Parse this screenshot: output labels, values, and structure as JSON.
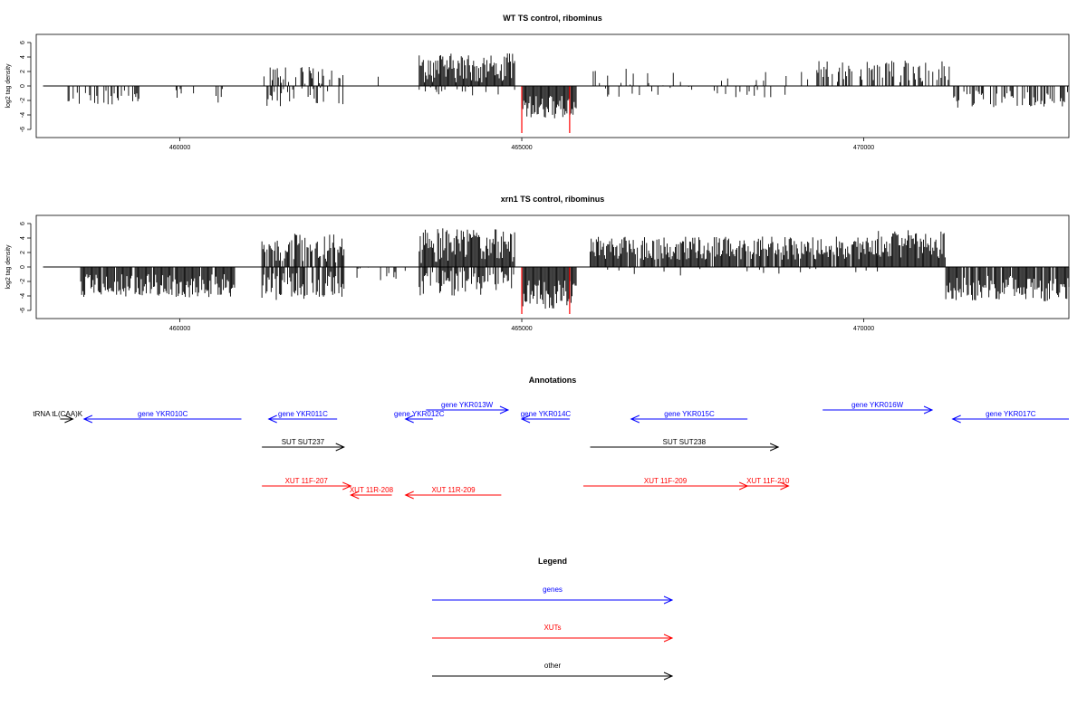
{
  "colors": {
    "genes": "#0000ff",
    "xuts": "#ff0000",
    "other": "#000000",
    "bars": "#000000",
    "highlight": "#ff0000"
  },
  "chart_data": [
    {
      "type": "bar",
      "title": "WT TS control, ribominus",
      "ylabel": "log2 tag density",
      "xlim": [
        457900,
        473000
      ],
      "ylim": [
        -6.5,
        6.5
      ],
      "x_ticks": [
        460000,
        465000,
        470000
      ],
      "x_tick_labels": [
        "460000",
        "465000",
        "470000"
      ],
      "y_ticks": [
        -6,
        -4,
        -2,
        0,
        2,
        4,
        6
      ],
      "y_tick_labels": [
        "-6",
        "-4",
        "-2",
        "0",
        "2",
        "4",
        "6"
      ],
      "region": [
        458000,
        473000
      ],
      "bar_segments": [
        {
          "start": 458200,
          "end": 458250,
          "mean": -1.6,
          "amp": 0.6,
          "density": 0.02
        },
        {
          "start": 458350,
          "end": 459400,
          "mean": -1.6,
          "amp": 1.0,
          "density": 0.4
        },
        {
          "start": 459600,
          "end": 461000,
          "mean": -1.3,
          "amp": 1.0,
          "density": 0.15
        },
        {
          "start": 461200,
          "end": 462400,
          "mean": 1.5,
          "amp": 1.2,
          "density": 0.3
        },
        {
          "start": 461200,
          "end": 462400,
          "mean": -1.5,
          "amp": 1.3,
          "density": 0.35
        },
        {
          "start": 462600,
          "end": 463400,
          "mean": 0.6,
          "amp": 1.2,
          "density": 0.06
        },
        {
          "start": 463500,
          "end": 464900,
          "mean": 2.5,
          "amp": 2.0,
          "density": 1.0
        },
        {
          "start": 463500,
          "end": 464900,
          "mean": -0.7,
          "amp": 0.6,
          "density": 0.15
        },
        {
          "start": 465000,
          "end": 465800,
          "mean": -2.9,
          "amp": 1.6,
          "density": 1.0
        },
        {
          "start": 466000,
          "end": 469200,
          "mean": 1.2,
          "amp": 1.2,
          "density": 0.1
        },
        {
          "start": 466000,
          "end": 469200,
          "mean": -0.8,
          "amp": 0.8,
          "density": 0.08
        },
        {
          "start": 469300,
          "end": 471300,
          "mean": 2.0,
          "amp": 1.5,
          "density": 0.45
        },
        {
          "start": 471300,
          "end": 473000,
          "mean": -1.8,
          "amp": 1.2,
          "density": 0.5
        }
      ],
      "highlight_bars": [
        {
          "x": 465000,
          "value": -6.5
        },
        {
          "x": 465700,
          "value": -6.5
        }
      ]
    },
    {
      "type": "bar",
      "title": "xrn1 TS control, ribominus",
      "ylabel": "log2 tag density",
      "xlim": [
        457900,
        473000
      ],
      "ylim": [
        -6.5,
        6.5
      ],
      "x_ticks": [
        460000,
        465000,
        470000
      ],
      "x_tick_labels": [
        "460000",
        "465000",
        "470000"
      ],
      "y_ticks": [
        -6,
        -4,
        -2,
        0,
        2,
        4,
        6
      ],
      "y_tick_labels": [
        "-6",
        "-4",
        "-2",
        "0",
        "2",
        "4",
        "6"
      ],
      "region": [
        458000,
        473000
      ],
      "bar_segments": [
        {
          "start": 458550,
          "end": 460800,
          "mean": -2.6,
          "amp": 1.6,
          "density": 0.9
        },
        {
          "start": 461200,
          "end": 462400,
          "mean": 2.6,
          "amp": 2.0,
          "density": 0.7
        },
        {
          "start": 461200,
          "end": 462400,
          "mean": -2.6,
          "amp": 2.0,
          "density": 0.7
        },
        {
          "start": 462500,
          "end": 463400,
          "mean": -1.0,
          "amp": 1.2,
          "density": 0.2
        },
        {
          "start": 463500,
          "end": 464900,
          "mean": 3.0,
          "amp": 2.5,
          "density": 1.0
        },
        {
          "start": 463500,
          "end": 464900,
          "mean": -2.2,
          "amp": 1.8,
          "density": 0.7
        },
        {
          "start": 465000,
          "end": 465800,
          "mean": -3.8,
          "amp": 2.0,
          "density": 1.0
        },
        {
          "start": 466000,
          "end": 470200,
          "mean": 2.6,
          "amp": 1.6,
          "density": 0.9
        },
        {
          "start": 466000,
          "end": 470200,
          "mean": -0.6,
          "amp": 0.6,
          "density": 0.06
        },
        {
          "start": 470200,
          "end": 471200,
          "mean": 3.2,
          "amp": 2.0,
          "density": 1.0
        },
        {
          "start": 471200,
          "end": 473000,
          "mean": -3.0,
          "amp": 1.8,
          "density": 0.9
        }
      ],
      "highlight_bars": [
        {
          "x": 465000,
          "value": -6.5
        },
        {
          "x": 465700,
          "value": -6.5
        }
      ]
    }
  ],
  "annotations": {
    "title": "Annotations",
    "features": [
      {
        "label": "tRNA tL(CAA)K",
        "start": 458250,
        "end": 458280,
        "strand": "+",
        "kind": "other",
        "row": 1
      },
      {
        "label": "gene YKR010C",
        "start": 458600,
        "end": 460900,
        "strand": "-",
        "kind": "genes",
        "row": 1
      },
      {
        "label": "gene YKR011C",
        "start": 461300,
        "end": 462300,
        "strand": "-",
        "kind": "genes",
        "row": 1
      },
      {
        "label": "gene YKR012C",
        "start": 463300,
        "end": 463700,
        "strand": "-",
        "kind": "genes",
        "row": 1
      },
      {
        "label": "gene YKR013W",
        "start": 463600,
        "end": 464800,
        "strand": "+",
        "kind": "genes",
        "row": 0
      },
      {
        "label": "gene YKR014C",
        "start": 465000,
        "end": 465700,
        "strand": "-",
        "kind": "genes",
        "row": 1
      },
      {
        "label": "gene YKR015C",
        "start": 466600,
        "end": 468300,
        "strand": "-",
        "kind": "genes",
        "row": 1
      },
      {
        "label": "gene YKR016W",
        "start": 469400,
        "end": 471000,
        "strand": "+",
        "kind": "genes",
        "row": 0
      },
      {
        "label": "gene YKR017C",
        "start": 471300,
        "end": 473000,
        "strand": "-",
        "kind": "genes",
        "row": 1
      },
      {
        "label": "SUT SUT237",
        "start": 461200,
        "end": 462400,
        "strand": "+",
        "kind": "other",
        "row": 2
      },
      {
        "label": "SUT SUT238",
        "start": 466000,
        "end": 468750,
        "strand": "+",
        "kind": "other",
        "row": 2
      },
      {
        "label": "XUT 11F-207",
        "start": 461200,
        "end": 462500,
        "strand": "+",
        "kind": "xuts",
        "row": 3
      },
      {
        "label": "XUT 11R-208",
        "start": 462500,
        "end": 463100,
        "strand": "-",
        "kind": "xuts",
        "row": 4
      },
      {
        "label": "XUT 11R-209",
        "start": 463300,
        "end": 464700,
        "strand": "-",
        "kind": "xuts",
        "row": 4
      },
      {
        "label": "XUT 11F-209",
        "start": 465900,
        "end": 468300,
        "strand": "+",
        "kind": "xuts",
        "row": 3
      },
      {
        "label": "XUT 11F-210",
        "start": 468300,
        "end": 468900,
        "strand": "+",
        "kind": "xuts",
        "row": 3
      }
    ]
  },
  "legend": {
    "title": "Legend",
    "items": [
      {
        "label": "genes",
        "kind": "genes"
      },
      {
        "label": "XUTs",
        "kind": "xuts"
      },
      {
        "label": "other",
        "kind": "other"
      }
    ]
  }
}
